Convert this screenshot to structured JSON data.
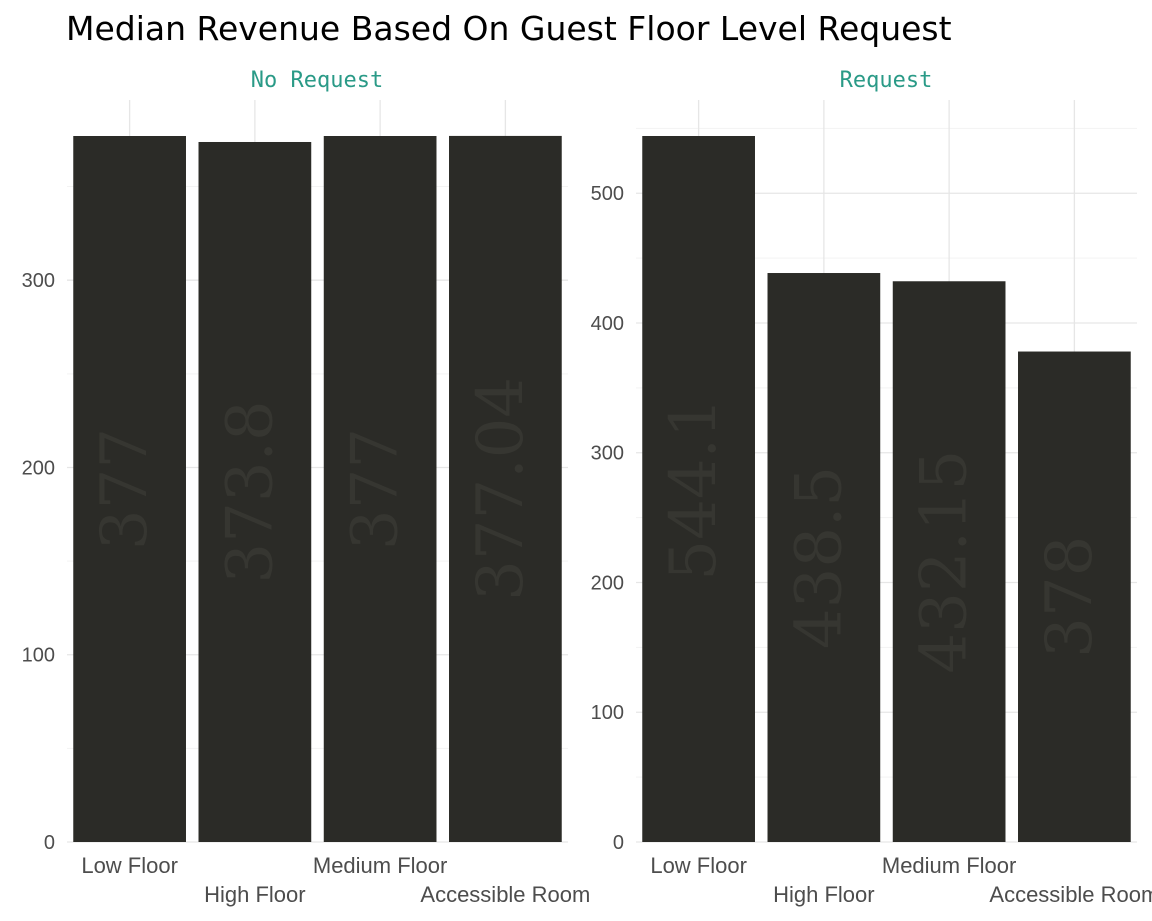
{
  "title": "Median Revenue Based On Guest Floor Level Request",
  "colors": {
    "bar": "#2b2b27",
    "label": "#363631",
    "strip": "#2a9a87",
    "grid_major": "#e6e6e6",
    "grid_minor": "#f3f3f3",
    "tick": "#4d4d4d"
  },
  "chart_data": [
    {
      "type": "bar",
      "panel": "No Request",
      "categories": [
        "Low Floor",
        "High Floor",
        "Medium Floor",
        "Accessible Room"
      ],
      "values": [
        377,
        373.8,
        377,
        377.04
      ],
      "labels": [
        "377",
        "373.8",
        "377",
        "377.04"
      ],
      "ylim": [
        0,
        377
      ],
      "yticks": [
        0,
        100,
        200,
        300
      ],
      "grid": true
    },
    {
      "type": "bar",
      "panel": "Request",
      "categories": [
        "Low Floor",
        "High Floor",
        "Medium Floor",
        "Accessible Room"
      ],
      "values": [
        544.1,
        438.5,
        432.15,
        378
      ],
      "labels": [
        "544.1",
        "438.5",
        "432.15",
        "378"
      ],
      "ylim": [
        0,
        544.1
      ],
      "yticks": [
        0,
        100,
        200,
        300,
        400,
        500
      ],
      "grid": true
    }
  ]
}
